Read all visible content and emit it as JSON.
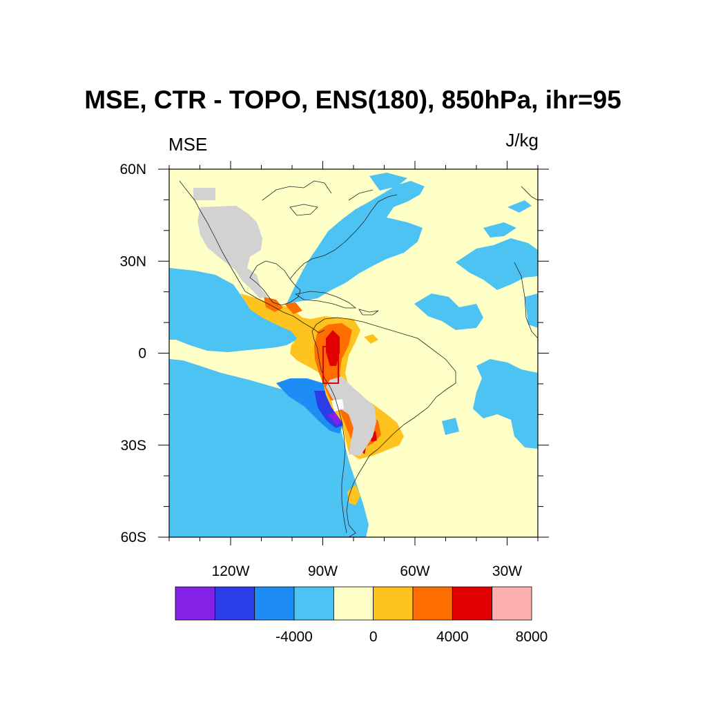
{
  "chart_data": {
    "type": "heatmap",
    "title": "MSE, CTR - TOPO, ENS(180), 850hPa, ihr=95",
    "left_label": "MSE",
    "right_label": "J/kg",
    "x_ticks": [
      "120W",
      "90W",
      "60W",
      "30W"
    ],
    "y_ticks": [
      "60N",
      "30N",
      "0",
      "30S",
      "60S"
    ],
    "lon_range": [
      -140,
      -20
    ],
    "lat_range": [
      -60,
      60
    ],
    "colorbar": {
      "colors": [
        "#8322e6",
        "#2a3de8",
        "#1e8cf5",
        "#4dc3f3",
        "#ffffc8",
        "#fec31e",
        "#fe6d00",
        "#e10000",
        "#feb0b0"
      ],
      "levels": [
        -8000,
        -6000,
        -4000,
        -2000,
        0,
        2000,
        4000,
        6000,
        8000
      ],
      "labels": [
        "-4000",
        "0",
        "4000",
        "8000"
      ]
    },
    "missing_color": "#d2d2d2",
    "box_region": {
      "lon": [
        -81,
        -76
      ],
      "lat": [
        -10,
        2
      ]
    }
  }
}
